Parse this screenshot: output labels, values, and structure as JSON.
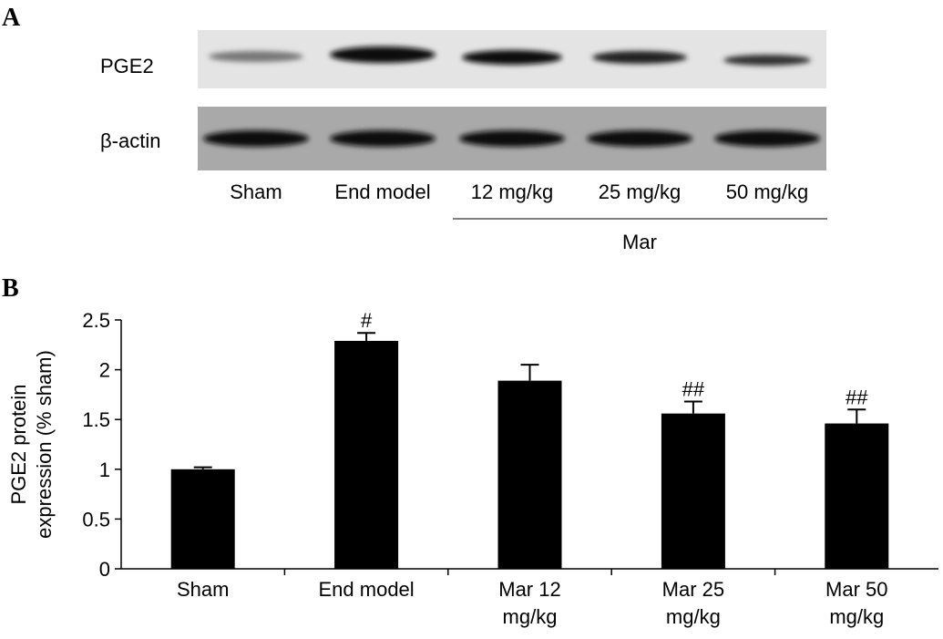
{
  "panel_a": {
    "label": "A",
    "rows": [
      "PGE2",
      "β-actin"
    ],
    "lanes": [
      "Sham",
      "End model",
      "12 mg/kg",
      "25 mg/kg",
      "50 mg/kg"
    ],
    "group_label": "Mar"
  },
  "chart_data": {
    "type": "bar",
    "panel_label": "B",
    "ylabel": [
      "PGE2 protein",
      "expression (% sham)"
    ],
    "categories": [
      "Sham",
      "End model",
      "Mar 12 mg/kg",
      "Mar 25 mg/kg",
      "Mar 50 mg/kg"
    ],
    "values": [
      1.0,
      2.29,
      1.89,
      1.56,
      1.46
    ],
    "errors": [
      0.02,
      0.08,
      0.16,
      0.12,
      0.14
    ],
    "annotations": [
      null,
      "#",
      null,
      "##",
      "##"
    ],
    "color": "#000000",
    "ylim": [
      0,
      2.5
    ],
    "yticks": [
      0,
      0.5,
      1,
      1.5,
      2,
      2.5
    ]
  }
}
